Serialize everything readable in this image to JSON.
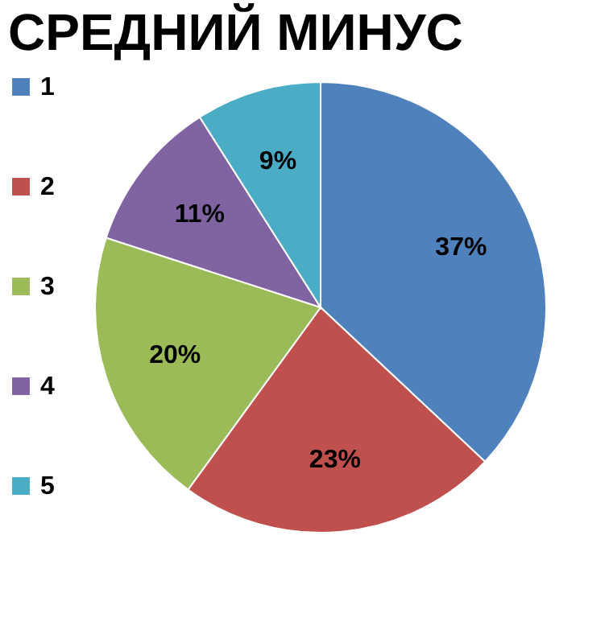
{
  "chart_data": {
    "type": "pie",
    "title": "СРЕДНИЙ МИНУС",
    "categories": [
      "1",
      "2",
      "3",
      "4",
      "5"
    ],
    "values": [
      37,
      23,
      20,
      11,
      9
    ],
    "colors": [
      "#4f81bd",
      "#c0504d",
      "#9bbb59",
      "#8064a2",
      "#4bacc6"
    ],
    "value_labels": [
      "37%",
      "23%",
      "20%",
      "11%",
      "9%"
    ],
    "legend": "left"
  }
}
